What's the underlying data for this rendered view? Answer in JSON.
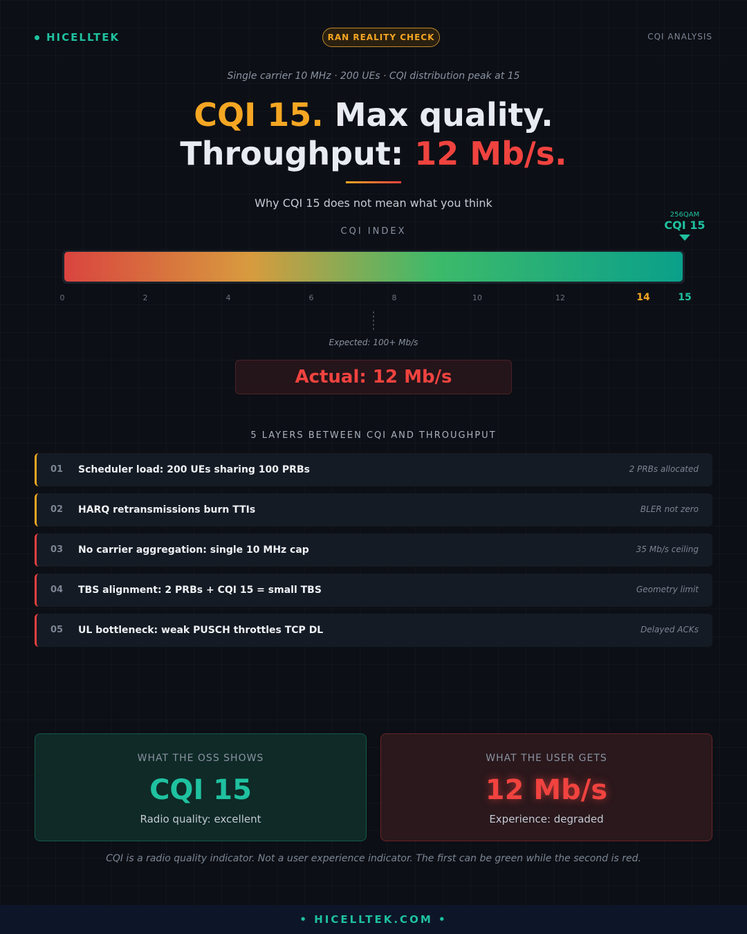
{
  "header": {
    "brand": "HICELLTEK",
    "badge": "RAN REALITY CHECK",
    "section": "CQI ANALYSIS"
  },
  "hero": {
    "context": "Single carrier 10 MHz · 200 UEs · CQI distribution peak at 15",
    "title_parts": [
      "CQI 15.",
      "Max quality.",
      "Throughput:",
      "12 Mb/s."
    ],
    "subtitle": "Why CQI 15 does not mean what you think"
  },
  "scale": {
    "label": "CQI INDEX",
    "range": [
      0,
      15
    ],
    "ticks": [
      0,
      2,
      4,
      6,
      8,
      10,
      12,
      14,
      15
    ],
    "marker": {
      "value": 15,
      "modulation": "256QAM",
      "label": "CQI 15"
    },
    "expected": "Expected: 100+ Mb/s",
    "actual": "Actual: 12 Mb/s"
  },
  "layers": {
    "title": "5 LAYERS BETWEEN CQI AND THROUGHPUT",
    "items": [
      {
        "number": "01",
        "text": "Scheduler load: 200 UEs sharing 100 PRBs",
        "note": "2 PRBs allocated",
        "color": "#f5a623"
      },
      {
        "number": "02",
        "text": "HARQ retransmissions burn TTIs",
        "note": "BLER not zero",
        "color": "#f5a623"
      },
      {
        "number": "03",
        "text": "No carrier aggregation: single 10 MHz cap",
        "note": "35 Mb/s ceiling",
        "color": "#e5413f"
      },
      {
        "number": "04",
        "text": "TBS alignment: 2 PRBs + CQI 15 = small TBS",
        "note": "Geometry limit",
        "color": "#e5413f"
      },
      {
        "number": "05",
        "text": "UL bottleneck: weak PUSCH throttles TCP DL",
        "note": "Delayed ACKs",
        "color": "#e5413f"
      }
    ]
  },
  "comparison": [
    {
      "label": "WHAT THE OSS SHOWS",
      "value": "CQI 15",
      "caption": "Radio quality: excellent"
    },
    {
      "label": "WHAT THE USER GETS",
      "value": "12 Mb/s",
      "caption": "Experience: degraded"
    }
  ],
  "footnote": "CQI is a radio quality indicator. Not a user experience indicator. The first can be green while the second is red.",
  "footer": "HICELLTEK.COM"
}
